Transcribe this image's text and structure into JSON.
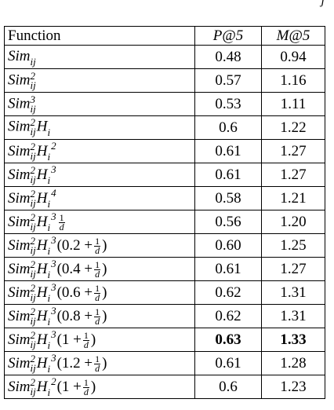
{
  "top_fragment": "j",
  "table": {
    "header": [
      "Function",
      "P@5",
      "M@5"
    ],
    "bold_row": 12,
    "rows": [
      {
        "function": [
          {
            "math": "Sim"
          },
          {
            "sub": "ij"
          }
        ],
        "p5": "0.48",
        "m5": "0.94"
      },
      {
        "function": [
          {
            "math": "Sim"
          },
          {
            "sup": "2",
            "sub": "ij"
          }
        ],
        "p5": "0.57",
        "m5": "1.16"
      },
      {
        "function": [
          {
            "math": "Sim"
          },
          {
            "sup": "3",
            "sub": "ij"
          }
        ],
        "p5": "0.53",
        "m5": "1.11"
      },
      {
        "function": [
          {
            "math": "Sim"
          },
          {
            "sup": "2",
            "sub": "ij"
          },
          {
            "math": "H"
          },
          {
            "sub": "i"
          }
        ],
        "p5": "0.6",
        "m5": "1.22"
      },
      {
        "function": [
          {
            "math": "Sim"
          },
          {
            "sup": "2",
            "sub": "ij"
          },
          {
            "math": "H"
          },
          {
            "sub": "i"
          },
          {
            "sup": "2"
          }
        ],
        "p5": "0.61",
        "m5": "1.27"
      },
      {
        "function": [
          {
            "math": "Sim"
          },
          {
            "sup": "2",
            "sub": "ij"
          },
          {
            "math": "H"
          },
          {
            "sub": "i"
          },
          {
            "sup": "3"
          }
        ],
        "p5": "0.61",
        "m5": "1.27"
      },
      {
        "function": [
          {
            "math": "Sim"
          },
          {
            "sup": "2",
            "sub": "ij"
          },
          {
            "math": "H"
          },
          {
            "sub": "i"
          },
          {
            "sup": "4"
          }
        ],
        "p5": "0.58",
        "m5": "1.21"
      },
      {
        "function": [
          {
            "math": "Sim"
          },
          {
            "sup": "2",
            "sub": "ij"
          },
          {
            "math": "H"
          },
          {
            "sub": "i"
          },
          {
            "sup": "3"
          },
          {
            "num": "1",
            "den": "d"
          }
        ],
        "p5": "0.56",
        "m5": "1.20"
      },
      {
        "function": [
          {
            "math": "Sim"
          },
          {
            "sup": "2",
            "sub": "ij"
          },
          {
            "math": "H"
          },
          {
            "sub": "i"
          },
          {
            "sup": "3"
          },
          {
            "plain": "(0.2 +"
          },
          {
            "num": "1",
            "den": "d"
          },
          {
            "plain": ")"
          }
        ],
        "p5": "0.60",
        "m5": "1.25"
      },
      {
        "function": [
          {
            "math": "Sim"
          },
          {
            "sup": "2",
            "sub": "ij"
          },
          {
            "math": "H"
          },
          {
            "sub": "i"
          },
          {
            "sup": "3"
          },
          {
            "plain": "(0.4 +"
          },
          {
            "num": "1",
            "den": "d"
          },
          {
            "plain": ")"
          }
        ],
        "p5": "0.61",
        "m5": "1.27"
      },
      {
        "function": [
          {
            "math": "Sim"
          },
          {
            "sup": "2",
            "sub": "ij"
          },
          {
            "math": "H"
          },
          {
            "sub": "i"
          },
          {
            "sup": "3"
          },
          {
            "plain": "(0.6 +"
          },
          {
            "num": "1",
            "den": "d"
          },
          {
            "plain": ")"
          }
        ],
        "p5": "0.62",
        "m5": "1.31"
      },
      {
        "function": [
          {
            "math": "Sim"
          },
          {
            "sup": "2",
            "sub": "ij"
          },
          {
            "math": "H"
          },
          {
            "sub": "i"
          },
          {
            "sup": "3"
          },
          {
            "plain": "(0.8 +"
          },
          {
            "num": "1",
            "den": "d"
          },
          {
            "plain": ")"
          }
        ],
        "p5": "0.62",
        "m5": "1.31"
      },
      {
        "function": [
          {
            "math": "Sim"
          },
          {
            "sup": "2",
            "sub": "ij"
          },
          {
            "math": "H"
          },
          {
            "sub": "i"
          },
          {
            "sup": "3"
          },
          {
            "plain": "(1 +"
          },
          {
            "num": "1",
            "den": "d"
          },
          {
            "plain": ")"
          }
        ],
        "p5": "0.63",
        "m5": "1.33"
      },
      {
        "function": [
          {
            "math": "Sim"
          },
          {
            "sup": "2",
            "sub": "ij"
          },
          {
            "math": "H"
          },
          {
            "sub": "i"
          },
          {
            "sup": "3"
          },
          {
            "plain": "(1.2 +"
          },
          {
            "num": "1",
            "den": "d"
          },
          {
            "plain": ")"
          }
        ],
        "p5": "0.61",
        "m5": "1.28"
      },
      {
        "function": [
          {
            "math": "Sim"
          },
          {
            "sup": "2",
            "sub": "ij"
          },
          {
            "math": "H"
          },
          {
            "sub": "i"
          },
          {
            "sup": "2"
          },
          {
            "plain": "(1 +"
          },
          {
            "num": "1",
            "den": "d"
          },
          {
            "plain": ")"
          }
        ],
        "p5": "0.6",
        "m5": "1.23"
      }
    ]
  }
}
